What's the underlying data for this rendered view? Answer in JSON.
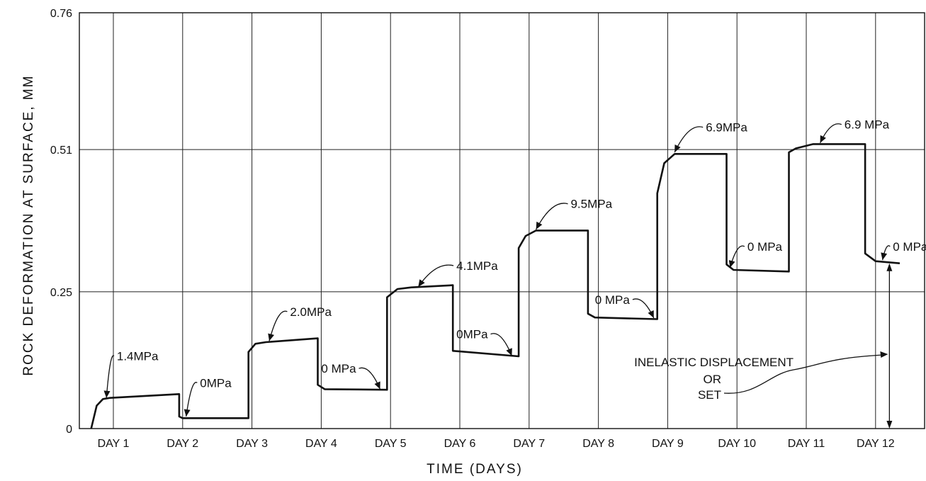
{
  "chart_data": {
    "type": "line",
    "ylabel": "ROCK DEFORMATION AT SURFACE, MM",
    "xlabel": "TIME (DAYS)",
    "ylim": [
      0,
      0.76
    ],
    "yticks": [
      {
        "value": 0,
        "label": "0"
      },
      {
        "value": 0.25,
        "label": "0.25"
      },
      {
        "value": 0.51,
        "label": "0.51"
      },
      {
        "value": 0.76,
        "label": "0.76"
      }
    ],
    "xlim": [
      0.05,
      12.7
    ],
    "x_ticks": [
      {
        "value": 1,
        "label": "DAY 1"
      },
      {
        "value": 2,
        "label": "DAY 2"
      },
      {
        "value": 3,
        "label": "DAY 3"
      },
      {
        "value": 4,
        "label": "DAY 4"
      },
      {
        "value": 5,
        "label": "DAY 5"
      },
      {
        "value": 6,
        "label": "DAY 6"
      },
      {
        "value": 7,
        "label": "DAY 7"
      },
      {
        "value": 8,
        "label": "DAY 8"
      },
      {
        "value": 9,
        "label": "DAY 9"
      },
      {
        "value": 10,
        "label": "DAY 10"
      },
      {
        "value": 11,
        "label": "DAY 11"
      },
      {
        "value": 12,
        "label": "DAY 12"
      }
    ],
    "grid": true,
    "series": [
      {
        "points": [
          [
            0.68,
            0.0
          ],
          [
            0.76,
            0.042
          ],
          [
            0.85,
            0.054
          ],
          [
            0.95,
            0.056
          ],
          [
            1.95,
            0.063
          ],
          [
            1.95,
            0.022
          ],
          [
            2.0,
            0.019
          ],
          [
            2.95,
            0.019
          ],
          [
            2.95,
            0.14
          ],
          [
            3.05,
            0.155
          ],
          [
            3.2,
            0.158
          ],
          [
            3.95,
            0.165
          ],
          [
            3.95,
            0.08
          ],
          [
            4.05,
            0.072
          ],
          [
            4.95,
            0.071
          ],
          [
            4.95,
            0.24
          ],
          [
            5.1,
            0.255
          ],
          [
            5.3,
            0.258
          ],
          [
            5.9,
            0.262
          ],
          [
            5.9,
            0.142
          ],
          [
            6.0,
            0.141
          ],
          [
            6.85,
            0.132
          ],
          [
            6.85,
            0.33
          ],
          [
            6.95,
            0.352
          ],
          [
            7.1,
            0.362
          ],
          [
            7.85,
            0.362
          ],
          [
            7.85,
            0.21
          ],
          [
            7.95,
            0.203
          ],
          [
            8.85,
            0.2
          ],
          [
            8.85,
            0.43
          ],
          [
            8.95,
            0.485
          ],
          [
            9.1,
            0.502
          ],
          [
            9.85,
            0.502
          ],
          [
            9.85,
            0.3
          ],
          [
            9.95,
            0.29
          ],
          [
            10.75,
            0.287
          ],
          [
            10.75,
            0.505
          ],
          [
            10.85,
            0.512
          ],
          [
            11.1,
            0.52
          ],
          [
            11.85,
            0.52
          ],
          [
            11.85,
            0.32
          ],
          [
            12.0,
            0.306
          ],
          [
            12.35,
            0.302
          ]
        ]
      }
    ],
    "annotations": [
      {
        "text": "1.4MPa",
        "x": 1.05,
        "y": 0.125,
        "arrow_to": [
          0.9,
          0.056
        ]
      },
      {
        "text": "0MPa",
        "x": 2.25,
        "y": 0.076,
        "arrow_to": [
          2.05,
          0.022
        ]
      },
      {
        "text": "2.0MPa",
        "x": 3.55,
        "y": 0.206,
        "arrow_to": [
          3.25,
          0.16
        ]
      },
      {
        "text": "0 MPa",
        "x": 4.0,
        "y": 0.102,
        "arrow_to": [
          4.85,
          0.072
        ]
      },
      {
        "text": "4.1MPa",
        "x": 5.95,
        "y": 0.29,
        "arrow_to": [
          5.4,
          0.259
        ]
      },
      {
        "text": "0MPa",
        "x": 5.95,
        "y": 0.165,
        "arrow_to": [
          6.75,
          0.133
        ]
      },
      {
        "text": "9.5MPa",
        "x": 7.6,
        "y": 0.403,
        "arrow_to": [
          7.1,
          0.364
        ]
      },
      {
        "text": "0 MPa",
        "x": 7.95,
        "y": 0.228,
        "arrow_to": [
          8.8,
          0.202
        ]
      },
      {
        "text": "6.9MPa",
        "x": 9.55,
        "y": 0.543,
        "arrow_to": [
          9.1,
          0.505
        ]
      },
      {
        "text": "0 MPa",
        "x": 10.15,
        "y": 0.325,
        "arrow_to": [
          9.9,
          0.294
        ]
      },
      {
        "text": "6.9 MPa",
        "x": 11.55,
        "y": 0.548,
        "arrow_to": [
          11.2,
          0.522
        ]
      },
      {
        "text": "0 MPa",
        "x": 12.25,
        "y": 0.325,
        "arrow_to": [
          12.1,
          0.308
        ]
      }
    ],
    "displacement_note": {
      "lines": [
        "INELASTIC DISPLACEMENT",
        "OR",
        "SET"
      ],
      "arrow_from_y": 0.302,
      "arrow_to_y": 0.0,
      "arrow_x": 12.2
    }
  }
}
